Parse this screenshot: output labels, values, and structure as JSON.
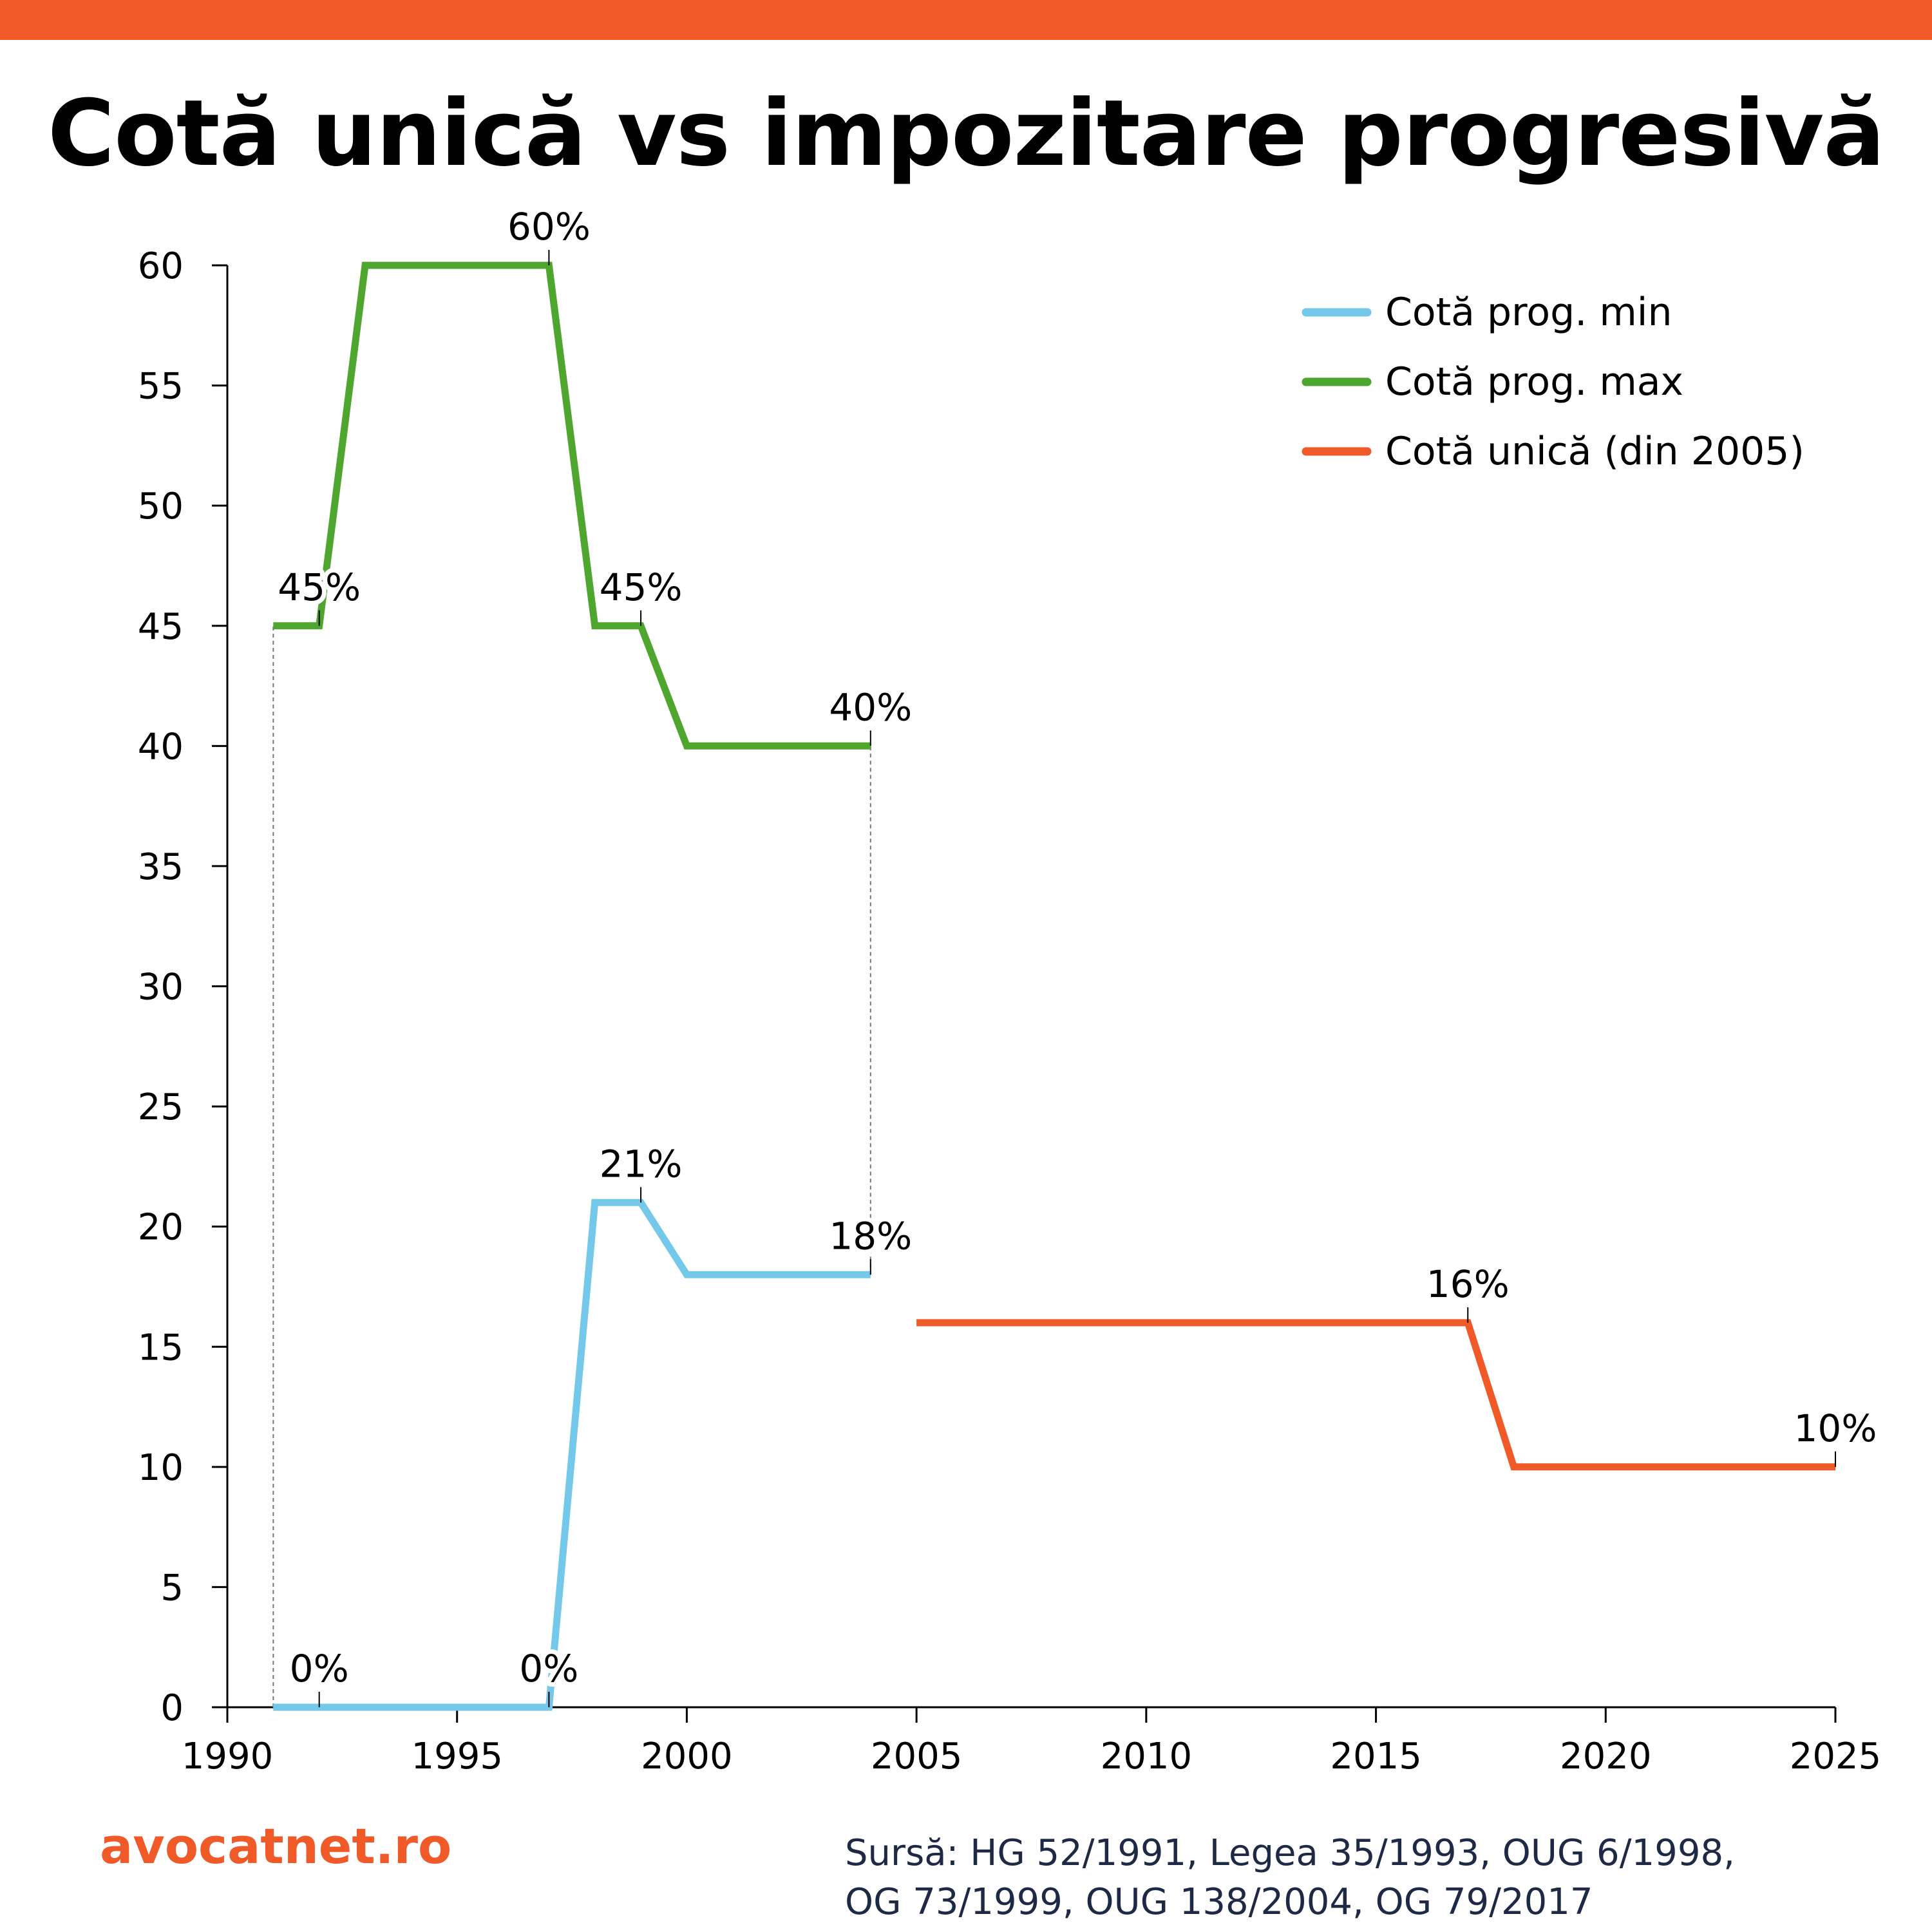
{
  "title": "Cotă unică vs impozitare progresivă",
  "brand": "avocatnet.ro",
  "source": {
    "line1": "Sursă: HG 52/1991, Legea 35/1993, OUG 6/1998,",
    "line2": "OG 73/1999, OUG 138/2004, OG 79/2017"
  },
  "colors": {
    "top_bar": "#f05a28",
    "min": "#74c8ea",
    "max": "#4fa62e",
    "flat": "#f05a28",
    "brand": "#f05a28",
    "source_text": "#1e2a45"
  },
  "chart_data": {
    "type": "line",
    "title": "Cotă unică vs impozitare progresivă",
    "xlabel": "",
    "ylabel": "",
    "xlim": [
      1990,
      2025
    ],
    "ylim": [
      0,
      60
    ],
    "x_ticks": [
      "1990",
      "1995",
      "2000",
      "2005",
      "2010",
      "2015",
      "2020",
      "2025"
    ],
    "y_ticks": [
      "0",
      "5",
      "10",
      "15",
      "20",
      "25",
      "30",
      "35",
      "40",
      "45",
      "50",
      "55",
      "60"
    ],
    "grid": false,
    "legend_position": "top-right",
    "series": [
      {
        "name": "Cotă prog. min",
        "color": "#74c8ea",
        "points": [
          [
            1991,
            0
          ],
          [
            1992,
            0
          ],
          [
            1993,
            0
          ],
          [
            1994,
            0
          ],
          [
            1995,
            0
          ],
          [
            1996,
            0
          ],
          [
            1997,
            0
          ],
          [
            1998,
            21
          ],
          [
            1999,
            21
          ],
          [
            2000,
            18
          ],
          [
            2001,
            18
          ],
          [
            2002,
            18
          ],
          [
            2003,
            18
          ],
          [
            2004,
            18
          ]
        ]
      },
      {
        "name": "Cotă prog. max",
        "color": "#4fa62e",
        "points": [
          [
            1991,
            45
          ],
          [
            1992,
            45
          ],
          [
            1993,
            60
          ],
          [
            1994,
            60
          ],
          [
            1995,
            60
          ],
          [
            1996,
            60
          ],
          [
            1997,
            60
          ],
          [
            1998,
            45
          ],
          [
            1999,
            45
          ],
          [
            2000,
            40
          ],
          [
            2001,
            40
          ],
          [
            2002,
            40
          ],
          [
            2003,
            40
          ],
          [
            2004,
            40
          ]
        ]
      },
      {
        "name": "Cotă unică (din 2005)",
        "color": "#f05a28",
        "points": [
          [
            2005,
            16
          ],
          [
            2006,
            16
          ],
          [
            2007,
            16
          ],
          [
            2008,
            16
          ],
          [
            2009,
            16
          ],
          [
            2010,
            16
          ],
          [
            2011,
            16
          ],
          [
            2012,
            16
          ],
          [
            2013,
            16
          ],
          [
            2014,
            16
          ],
          [
            2015,
            16
          ],
          [
            2016,
            16
          ],
          [
            2017,
            16
          ],
          [
            2018,
            10
          ],
          [
            2019,
            10
          ],
          [
            2020,
            10
          ],
          [
            2021,
            10
          ],
          [
            2022,
            10
          ],
          [
            2023,
            10
          ],
          [
            2024,
            10
          ],
          [
            2025,
            10
          ]
        ]
      }
    ],
    "annotations": [
      {
        "series": "Cotă prog. min",
        "x": 1992,
        "y": 0,
        "label": "0%"
      },
      {
        "series": "Cotă prog. min",
        "x": 1997,
        "y": 0,
        "label": "0%"
      },
      {
        "series": "Cotă prog. min",
        "x": 1999,
        "y": 21,
        "label": "21%"
      },
      {
        "series": "Cotă prog. min",
        "x": 2004,
        "y": 18,
        "label": "18%"
      },
      {
        "series": "Cotă prog. max",
        "x": 1992,
        "y": 45,
        "label": "45%"
      },
      {
        "series": "Cotă prog. max",
        "x": 1997,
        "y": 60,
        "label": "60%"
      },
      {
        "series": "Cotă prog. max",
        "x": 1999,
        "y": 45,
        "label": "45%"
      },
      {
        "series": "Cotă prog. max",
        "x": 2004,
        "y": 40,
        "label": "40%"
      },
      {
        "series": "Cotă unică (din 2005)",
        "x": 2017,
        "y": 16,
        "label": "16%"
      },
      {
        "series": "Cotă unică (din 2005)",
        "x": 2025,
        "y": 10,
        "label": "10%"
      }
    ],
    "drop_lines": [
      {
        "x": 1991,
        "from": 0,
        "to": 45
      },
      {
        "x": 2004,
        "from": 18,
        "to": 40
      }
    ]
  }
}
